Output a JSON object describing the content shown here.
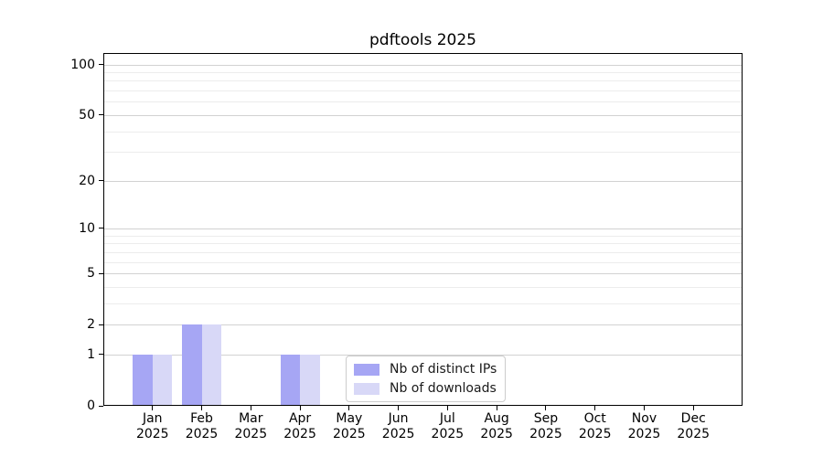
{
  "chart_data": {
    "type": "bar",
    "title": "pdftools 2025",
    "x_tick_months": [
      "Jan",
      "Feb",
      "Mar",
      "Apr",
      "May",
      "Jun",
      "Jul",
      "Aug",
      "Sep",
      "Oct",
      "Nov",
      "Dec"
    ],
    "x_tick_year": "2025",
    "series": [
      {
        "name": "Nb of distinct IPs",
        "color": "#a6a6f4",
        "values": [
          1,
          2,
          0,
          1,
          0,
          0,
          0,
          0,
          0,
          0,
          0,
          0
        ]
      },
      {
        "name": "Nb of downloads",
        "color": "#d8d8f7",
        "values": [
          1,
          2,
          0,
          1,
          0,
          0,
          0,
          0,
          0,
          0,
          0,
          0
        ]
      }
    ],
    "y_axis": {
      "scale": "log1p",
      "major_ticks": [
        0,
        1,
        2,
        5,
        10,
        20,
        50,
        100
      ],
      "minor_gridlines": [
        3,
        4,
        6,
        7,
        8,
        9,
        30,
        40,
        60,
        70,
        80,
        90
      ],
      "max": 117
    },
    "legend": {
      "position": "lower-right-of-center",
      "border_color": "#cccccc"
    },
    "colors": {
      "background": "#ffffff",
      "spine": "#000000",
      "major_grid": "#d2d2d2",
      "minor_grid": "#ececec",
      "text": "#000000"
    }
  }
}
